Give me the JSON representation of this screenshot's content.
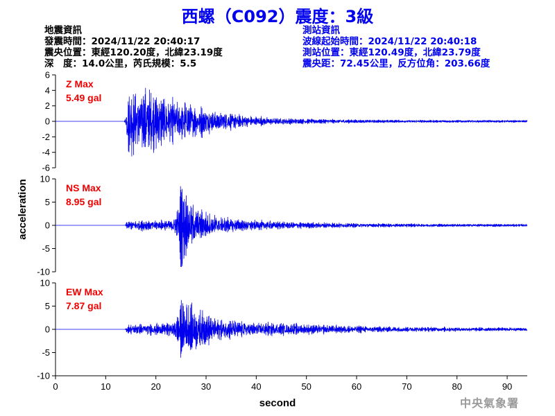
{
  "title": "西螺（C092）震度：3級",
  "earthquake_info": {
    "heading": "地震資訊",
    "time": "發震時間：2024/11/22 20:40:17",
    "epicenter": "震央位置：東經120.20度，北緯23.19度",
    "depth_magnitude": "深　度：14.0公里，芮氏規模：5.5"
  },
  "station_info": {
    "heading": "測站資訊",
    "wave_start": "波線起始時間：2024/11/22 20:40:18",
    "location": "測站位置：東經120.49度，北緯23.79度",
    "distance": "震央距：72.45公里，反方位角：203.66度"
  },
  "credit": "中央氣象署",
  "colors": {
    "trace": "#0000ee",
    "max_label": "#ee0000",
    "title": "#0000ee",
    "axis": "#000000"
  },
  "chart_data": {
    "type": "line",
    "xlabel": "second",
    "ylabel": "acceleration",
    "xlim": [
      0,
      94
    ],
    "x_ticks": [
      0,
      10,
      20,
      30,
      40,
      50,
      60,
      70,
      80,
      90
    ],
    "panels": [
      {
        "name": "Z",
        "max_label": "Z Max",
        "max_value": "5.49 gal",
        "peak": 5.49,
        "ylim": [
          -6,
          6
        ],
        "y_ticks": [
          6,
          4,
          2,
          0,
          -2,
          -4,
          -6
        ],
        "envelope": [
          [
            0,
            0
          ],
          [
            13.7,
            0
          ],
          [
            14,
            0.6
          ],
          [
            14.5,
            4.8
          ],
          [
            16,
            4.6
          ],
          [
            18,
            4.3
          ],
          [
            20,
            3.8
          ],
          [
            22,
            3.2
          ],
          [
            25,
            2.7
          ],
          [
            28,
            2.2
          ],
          [
            32,
            1.5
          ],
          [
            36,
            1.0
          ],
          [
            40,
            0.7
          ],
          [
            45,
            0.45
          ],
          [
            50,
            0.35
          ],
          [
            60,
            0.25
          ],
          [
            70,
            0.2
          ],
          [
            80,
            0.17
          ],
          [
            94,
            0.15
          ]
        ]
      },
      {
        "name": "NS",
        "max_label": "NS Max",
        "max_value": "8.95 gal",
        "peak": 8.95,
        "ylim": [
          -10,
          10
        ],
        "y_ticks": [
          10,
          5,
          0,
          -5,
          -10
        ],
        "envelope": [
          [
            0,
            0
          ],
          [
            13.9,
            0
          ],
          [
            14.2,
            0.9
          ],
          [
            16,
            1.2
          ],
          [
            20,
            1.1
          ],
          [
            23,
            1.3
          ],
          [
            24.5,
            4.5
          ],
          [
            25,
            8.6
          ],
          [
            26.5,
            6.0
          ],
          [
            28,
            4.0
          ],
          [
            30,
            3.0
          ],
          [
            33,
            2.0
          ],
          [
            37,
            1.4
          ],
          [
            42,
            1.0
          ],
          [
            50,
            0.7
          ],
          [
            60,
            0.5
          ],
          [
            70,
            0.4
          ],
          [
            80,
            0.35
          ],
          [
            94,
            0.3
          ]
        ]
      },
      {
        "name": "EW",
        "max_label": "EW Max",
        "max_value": "7.87 gal",
        "peak": 7.87,
        "ylim": [
          -10,
          10
        ],
        "y_ticks": [
          10,
          5,
          0,
          -5,
          -10
        ],
        "envelope": [
          [
            0,
            0
          ],
          [
            13.9,
            0
          ],
          [
            14.2,
            0.9
          ],
          [
            16,
            1.2
          ],
          [
            20,
            1.3
          ],
          [
            23.5,
            1.5
          ],
          [
            24.5,
            5.0
          ],
          [
            25.5,
            7.6
          ],
          [
            27,
            5.5
          ],
          [
            29,
            4.0
          ],
          [
            32,
            2.8
          ],
          [
            36,
            2.0
          ],
          [
            42,
            1.5
          ],
          [
            50,
            1.1
          ],
          [
            60,
            0.8
          ],
          [
            70,
            0.6
          ],
          [
            80,
            0.5
          ],
          [
            94,
            0.4
          ]
        ]
      }
    ]
  }
}
